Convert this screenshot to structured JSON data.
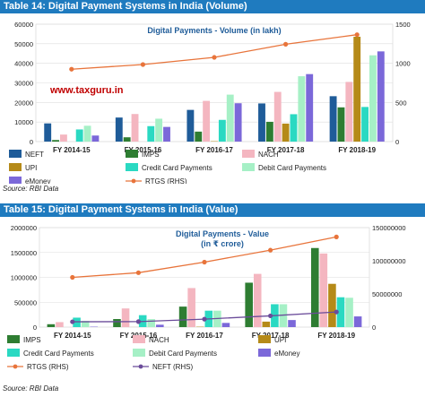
{
  "panel1": {
    "header": "Table 14: Digital Payment Systems in India (Volume)",
    "source": "Source: RBI Data",
    "watermark": "www.taxguru.in"
  },
  "panel2": {
    "header": "Table 15: Digital Payment Systems in India (Value)",
    "source": "Source: RBI Data"
  },
  "chart_data": [
    {
      "type": "bar",
      "title": "Digital Payments - Volume (in lakh)",
      "categories": [
        "FY 2014-15",
        "FY 2015-16",
        "FY 2016-17",
        "FY 2017-18",
        "FY 2018-19"
      ],
      "ylim": [
        0,
        60000
      ],
      "yticks": [
        0,
        10000,
        20000,
        30000,
        40000,
        50000,
        60000
      ],
      "y2lim": [
        0,
        1500
      ],
      "y2ticks": [
        0,
        500,
        1000,
        1500
      ],
      "grid": true,
      "legend_position": "bottom",
      "series": [
        {
          "name": "NEFT",
          "values": [
            9300,
            12300,
            16200,
            19500,
            23200
          ],
          "color": "#1f5c99"
        },
        {
          "name": "IMPS",
          "values": [
            800,
            2200,
            5100,
            10100,
            17500
          ],
          "color": "#2e7d32"
        },
        {
          "name": "NACH",
          "values": [
            3600,
            14100,
            20800,
            25400,
            30500
          ],
          "color": "#f4b6c0"
        },
        {
          "name": "UPI",
          "values": [
            0,
            0,
            200,
            9200,
            53600
          ],
          "color": "#b58a18"
        },
        {
          "name": "Credit Card Payments",
          "values": [
            6200,
            7900,
            11100,
            14000,
            17700
          ],
          "color": "#2ad9c2"
        },
        {
          "name": "Debit Card Payments",
          "values": [
            8100,
            11700,
            24000,
            33400,
            44100
          ],
          "color": "#a6f0c6"
        },
        {
          "name": "eMoney",
          "values": [
            3100,
            7500,
            19600,
            34500,
            46100
          ],
          "color": "#7b68d9"
        },
        {
          "name": "RTGS (RHS)",
          "type": "line",
          "axis": "right",
          "values": [
            925,
            985,
            1076,
            1244,
            1366
          ],
          "color": "#e8743b"
        }
      ]
    },
    {
      "type": "bar",
      "title": "Digital Payments - Value (in ₹ crore)",
      "categories": [
        "FY 2014-15",
        "FY 2015-16",
        "FY 2016-17",
        "FY 2017-18",
        "FY 2018-19"
      ],
      "ylim": [
        0,
        2000000
      ],
      "yticks": [
        0,
        500000,
        1000000,
        1500000,
        2000000
      ],
      "y2lim": [
        0,
        150000000
      ],
      "y2ticks": [
        0,
        50000000,
        100000000,
        150000000
      ],
      "grid": true,
      "legend_position": "bottom",
      "series": [
        {
          "name": "IMPS",
          "values": [
            58000,
            162000,
            412000,
            893000,
            1590000
          ],
          "color": "#2e7d32"
        },
        {
          "name": "NACH",
          "values": [
            100000,
            375000,
            785000,
            1070000,
            1480000
          ],
          "color": "#f4b6c0"
        },
        {
          "name": "UPI",
          "values": [
            0,
            1000,
            7000,
            110000,
            870000
          ],
          "color": "#b58a18"
        },
        {
          "name": "Credit Card Payments",
          "values": [
            190000,
            240000,
            330000,
            460000,
            600000
          ],
          "color": "#2ad9c2"
        },
        {
          "name": "Debit Card Payments",
          "values": [
            125000,
            160000,
            330000,
            460000,
            590000
          ],
          "color": "#a6f0c6"
        },
        {
          "name": "eMoney",
          "values": [
            8000,
            48000,
            84000,
            142000,
            215000
          ],
          "color": "#7b68d9"
        },
        {
          "name": "RTGS (RHS)",
          "type": "line",
          "axis": "right",
          "values": [
            75000000,
            82000000,
            98000000,
            116000000,
            136000000
          ],
          "color": "#e8743b"
        },
        {
          "name": "NEFT (RHS)",
          "type": "line",
          "axis": "right",
          "values": [
            8000000,
            8300000,
            12000000,
            17000000,
            22800000
          ],
          "color": "#6b4c9a"
        }
      ]
    }
  ]
}
